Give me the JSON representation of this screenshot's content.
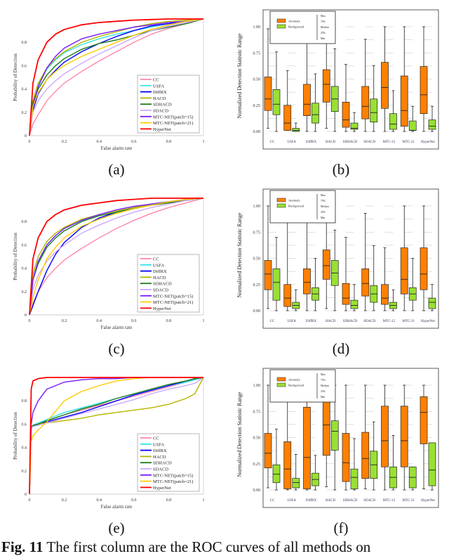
{
  "methods": [
    "CC",
    "USFA",
    "DiffRX",
    "HACD",
    "SDHACD",
    "SDACD",
    "MTC-NET(patch=15)",
    "MTC-NET(patch=21)",
    "HyperNet"
  ],
  "box_categories": [
    "CC",
    "USFA",
    "DiffRX",
    "HACD",
    "SDHACD",
    "SDACD",
    "MTC-15",
    "MTC-21",
    "HyperNet"
  ],
  "colors": {
    "CC": "#ff88aa",
    "USFA": "#33e6e6",
    "DiffRX": "#0000ff",
    "HACD": "#b5b500",
    "SDHACD": "#1a7a1a",
    "SDACD": "#ccaaff",
    "MTC-NET(patch=15)": "#7a1aff",
    "MTC-NET(patch=21)": "#ffcc00",
    "HyperNet": "#ff0000",
    "anomaly": "#ff8000",
    "background": "#99e033"
  },
  "panel_labels": [
    "(a)",
    "(b)",
    "(c)",
    "(d)",
    "(e)",
    "(f)"
  ],
  "caption": {
    "fig": "Fig. 11",
    "text": " The first column are the ROC curves of all methods on"
  },
  "chart_data": [
    {
      "panel": "(a)",
      "type": "line",
      "xlabel": "False alarm rate",
      "ylabel": "Probability of Detection",
      "xlim": [
        0,
        1
      ],
      "ylim": [
        0,
        1
      ],
      "xticks": [
        "0",
        "0.2",
        "0.4",
        "0.6",
        "0.8",
        "1"
      ],
      "yticks": [
        "0",
        "0.2",
        "0.4",
        "0.6",
        "0.8"
      ],
      "legend": "bottom-right",
      "x": [
        0,
        0.02,
        0.05,
        0.1,
        0.15,
        0.2,
        0.3,
        0.4,
        0.5,
        0.6,
        0.7,
        0.8,
        0.9,
        1
      ],
      "series": [
        {
          "name": "CC",
          "values": [
            0,
            0.1,
            0.18,
            0.3,
            0.38,
            0.45,
            0.55,
            0.64,
            0.72,
            0.8,
            0.87,
            0.92,
            0.96,
            1
          ]
        },
        {
          "name": "USFA",
          "values": [
            0,
            0.3,
            0.43,
            0.57,
            0.65,
            0.71,
            0.78,
            0.83,
            0.87,
            0.9,
            0.93,
            0.96,
            0.98,
            1
          ]
        },
        {
          "name": "DiffRX",
          "values": [
            0,
            0.22,
            0.36,
            0.48,
            0.56,
            0.63,
            0.72,
            0.79,
            0.85,
            0.9,
            0.94,
            0.96,
            0.98,
            1
          ]
        },
        {
          "name": "HACD",
          "values": [
            0,
            0.3,
            0.45,
            0.58,
            0.66,
            0.72,
            0.8,
            0.85,
            0.89,
            0.93,
            0.96,
            0.98,
            0.99,
            1
          ]
        },
        {
          "name": "SDHACD",
          "values": [
            0,
            0.28,
            0.4,
            0.52,
            0.6,
            0.66,
            0.74,
            0.79,
            0.82,
            0.86,
            0.9,
            0.93,
            0.96,
            1
          ]
        },
        {
          "name": "SDACD",
          "values": [
            0,
            0.2,
            0.3,
            0.4,
            0.47,
            0.53,
            0.62,
            0.7,
            0.77,
            0.84,
            0.9,
            0.94,
            0.97,
            1
          ]
        },
        {
          "name": "MTC-NET(patch=15)",
          "values": [
            0,
            0.25,
            0.42,
            0.58,
            0.68,
            0.75,
            0.83,
            0.87,
            0.9,
            0.93,
            0.95,
            0.97,
            0.98,
            1
          ]
        },
        {
          "name": "MTC-NET(patch=21)",
          "values": [
            0,
            0.25,
            0.37,
            0.48,
            0.55,
            0.6,
            0.68,
            0.74,
            0.8,
            0.86,
            0.91,
            0.95,
            0.98,
            1
          ]
        },
        {
          "name": "HyperNet",
          "values": [
            0,
            0.45,
            0.65,
            0.8,
            0.87,
            0.91,
            0.95,
            0.97,
            0.98,
            0.99,
            0.995,
            1,
            1,
            1
          ]
        }
      ]
    },
    {
      "panel": "(b)",
      "type": "box",
      "ylabel": "Normalized Detection Statistic Range",
      "ylim": [
        0,
        1
      ],
      "yticks": [
        "0.00",
        "0.25",
        "0.50",
        "0.75",
        "1.00"
      ],
      "legend": "top-left",
      "series_names": [
        "Anomaly",
        "Background"
      ],
      "whisker_labels": [
        "Max",
        "75%",
        "Median",
        "25%",
        "Min"
      ],
      "anomaly": [
        [
          0.03,
          0.2,
          0.31,
          0.52,
          0.98
        ],
        [
          0.01,
          0.01,
          0.08,
          0.25,
          0.58
        ],
        [
          0,
          0.15,
          0.26,
          0.45,
          1.0
        ],
        [
          0.03,
          0.28,
          0.45,
          0.59,
          1.0
        ],
        [
          0,
          0.04,
          0.11,
          0.28,
          0.64
        ],
        [
          0,
          0.12,
          0.24,
          0.43,
          0.88
        ],
        [
          0,
          0.22,
          0.42,
          0.66,
          1.0
        ],
        [
          0,
          0.05,
          0.2,
          0.53,
          1.0
        ],
        [
          0,
          0.17,
          0.35,
          0.62,
          1.0
        ]
      ],
      "background": [
        [
          0,
          0.16,
          0.26,
          0.4,
          0.76
        ],
        [
          0,
          0,
          0.01,
          0.03,
          0.08
        ],
        [
          0,
          0.08,
          0.16,
          0.27,
          0.55
        ],
        [
          0,
          0.19,
          0.31,
          0.43,
          0.79
        ],
        [
          0,
          0.02,
          0.03,
          0.08,
          0.18
        ],
        [
          0,
          0.09,
          0.18,
          0.31,
          0.63
        ],
        [
          0,
          0.02,
          0.07,
          0.17,
          0.39
        ],
        [
          0,
          0.01,
          0.01,
          0.1,
          0.24
        ],
        [
          0,
          0.02,
          0.05,
          0.11,
          0.24
        ]
      ]
    },
    {
      "panel": "(c)",
      "type": "line",
      "xlabel": "False alarm rate",
      "ylabel": "Probability of Detection",
      "xlim": [
        0,
        1
      ],
      "ylim": [
        0,
        1
      ],
      "xticks": [
        "0",
        "0.2",
        "0.4",
        "0.6",
        "0.8",
        "1"
      ],
      "yticks": [
        "0",
        "0.2",
        "0.4",
        "0.6",
        "0.8"
      ],
      "legend": "bottom-right",
      "x": [
        0,
        0.02,
        0.05,
        0.1,
        0.15,
        0.2,
        0.3,
        0.4,
        0.5,
        0.6,
        0.7,
        0.8,
        0.9,
        1
      ],
      "series": [
        {
          "name": "CC",
          "values": [
            0,
            0.1,
            0.2,
            0.32,
            0.4,
            0.47,
            0.57,
            0.66,
            0.74,
            0.81,
            0.87,
            0.92,
            0.96,
            1
          ]
        },
        {
          "name": "USFA",
          "values": [
            0,
            0.32,
            0.46,
            0.6,
            0.68,
            0.74,
            0.81,
            0.86,
            0.89,
            0.92,
            0.95,
            0.97,
            0.99,
            1
          ]
        },
        {
          "name": "DiffRX",
          "values": [
            0,
            0.08,
            0.2,
            0.38,
            0.52,
            0.62,
            0.75,
            0.83,
            0.88,
            0.92,
            0.95,
            0.97,
            0.99,
            1
          ]
        },
        {
          "name": "HACD",
          "values": [
            0,
            0.35,
            0.5,
            0.63,
            0.7,
            0.75,
            0.82,
            0.86,
            0.89,
            0.92,
            0.95,
            0.97,
            0.99,
            1
          ]
        },
        {
          "name": "SDHACD",
          "values": [
            0,
            0.3,
            0.44,
            0.58,
            0.66,
            0.72,
            0.8,
            0.85,
            0.88,
            0.91,
            0.94,
            0.96,
            0.98,
            1
          ]
        },
        {
          "name": "SDACD",
          "values": [
            0,
            0.22,
            0.34,
            0.46,
            0.54,
            0.6,
            0.7,
            0.77,
            0.83,
            0.88,
            0.92,
            0.95,
            0.98,
            1
          ]
        },
        {
          "name": "MTC-NET(patch=15)",
          "values": [
            0,
            0.3,
            0.46,
            0.6,
            0.68,
            0.74,
            0.81,
            0.86,
            0.9,
            0.93,
            0.95,
            0.97,
            0.99,
            1
          ]
        },
        {
          "name": "MTC-NET(patch=21)",
          "values": [
            0,
            0.15,
            0.3,
            0.48,
            0.58,
            0.66,
            0.76,
            0.82,
            0.87,
            0.91,
            0.94,
            0.97,
            0.99,
            1
          ]
        },
        {
          "name": "HyperNet",
          "values": [
            0,
            0.48,
            0.66,
            0.8,
            0.86,
            0.9,
            0.94,
            0.96,
            0.98,
            0.99,
            1,
            1,
            1,
            1
          ]
        }
      ]
    },
    {
      "panel": "(d)",
      "type": "box",
      "ylabel": "Normalized Detection Statistic Range",
      "ylim": [
        0,
        1
      ],
      "yticks": [
        "0.00",
        "0.25",
        "0.50",
        "0.75",
        "1.00"
      ],
      "legend": "top-left",
      "series_names": [
        "Anomaly",
        "Background"
      ],
      "whisker_labels": [
        "Max",
        "75%",
        "Median",
        "25%",
        "Min"
      ],
      "anomaly": [
        [
          0.02,
          0.2,
          0.35,
          0.48,
          1.0
        ],
        [
          0,
          0.04,
          0.12,
          0.25,
          1.0
        ],
        [
          0,
          0.16,
          0.27,
          0.4,
          1.0
        ],
        [
          0.02,
          0.3,
          0.43,
          0.58,
          1.0
        ],
        [
          0,
          0.06,
          0.12,
          0.26,
          0.7
        ],
        [
          0,
          0.14,
          0.26,
          0.4,
          0.93
        ],
        [
          0,
          0.06,
          0.12,
          0.25,
          0.6
        ],
        [
          0,
          0.16,
          0.3,
          0.6,
          1.0
        ],
        [
          0,
          0.2,
          0.35,
          0.6,
          1.0
        ]
      ],
      "background": [
        [
          0,
          0.1,
          0.27,
          0.4,
          0.7
        ],
        [
          0,
          0.02,
          0.05,
          0.08,
          0.2
        ],
        [
          0,
          0.1,
          0.16,
          0.22,
          0.5
        ],
        [
          0,
          0.24,
          0.36,
          0.48,
          0.77
        ],
        [
          0,
          0.02,
          0.05,
          0.1,
          0.25
        ],
        [
          0,
          0.08,
          0.16,
          0.24,
          0.62
        ],
        [
          0,
          0.02,
          0.05,
          0.08,
          0.2
        ],
        [
          0,
          0.1,
          0.16,
          0.22,
          0.5
        ],
        [
          0,
          0.02,
          0.08,
          0.12,
          0.25
        ]
      ]
    },
    {
      "panel": "(e)",
      "type": "line",
      "xlabel": "False alarm rate",
      "ylabel": "Probability of Detection",
      "xlim": [
        0,
        1
      ],
      "ylim": [
        0,
        1
      ],
      "xticks": [
        "0",
        "0.2",
        "0.4",
        "0.6",
        "0.8",
        "1"
      ],
      "yticks": [
        "0",
        "0.2",
        "0.4",
        "0.6",
        "0.8"
      ],
      "legend": "bottom-right",
      "x": [
        0,
        0.01,
        0.02,
        0.05,
        0.1,
        0.2,
        0.3,
        0.4,
        0.5,
        0.6,
        0.7,
        0.8,
        0.9,
        0.95,
        1
      ],
      "series": [
        {
          "name": "CC",
          "values": [
            0,
            0.57,
            0.59,
            0.6,
            0.63,
            0.68,
            0.72,
            0.76,
            0.8,
            0.84,
            0.88,
            0.92,
            0.96,
            0.98,
            1
          ]
        },
        {
          "name": "USFA",
          "values": [
            0,
            0.57,
            0.59,
            0.61,
            0.64,
            0.7,
            0.74,
            0.78,
            0.82,
            0.86,
            0.89,
            0.93,
            0.96,
            0.98,
            1
          ]
        },
        {
          "name": "DiffRX",
          "values": [
            0,
            0.57,
            0.58,
            0.6,
            0.62,
            0.66,
            0.7,
            0.75,
            0.8,
            0.85,
            0.89,
            0.93,
            0.97,
            0.99,
            1
          ]
        },
        {
          "name": "HACD",
          "values": [
            0,
            0.57,
            0.59,
            0.6,
            0.61,
            0.63,
            0.65,
            0.68,
            0.7,
            0.72,
            0.74,
            0.77,
            0.82,
            0.86,
            1
          ]
        },
        {
          "name": "SDHACD",
          "values": [
            0,
            0.57,
            0.59,
            0.6,
            0.63,
            0.68,
            0.73,
            0.77,
            0.82,
            0.86,
            0.9,
            0.94,
            0.97,
            0.99,
            1
          ]
        },
        {
          "name": "SDACD",
          "values": [
            0,
            0.56,
            0.58,
            0.59,
            0.61,
            0.65,
            0.69,
            0.73,
            0.77,
            0.81,
            0.86,
            0.9,
            0.93,
            0.95,
            1
          ]
        },
        {
          "name": "MTC-NET(patch=15)",
          "values": [
            0,
            0.6,
            0.7,
            0.8,
            0.9,
            0.96,
            0.98,
            0.99,
            0.99,
            1,
            1,
            1,
            1,
            1,
            1
          ]
        },
        {
          "name": "MTC-NET(patch=21)",
          "values": [
            0,
            0.45,
            0.5,
            0.55,
            0.62,
            0.8,
            0.88,
            0.93,
            0.97,
            0.99,
            1,
            1,
            1,
            1,
            1
          ]
        },
        {
          "name": "HyperNet",
          "values": [
            0,
            0.9,
            0.97,
            0.99,
            1,
            1,
            1,
            1,
            1,
            1,
            1,
            1,
            1,
            1,
            1
          ]
        }
      ]
    },
    {
      "panel": "(f)",
      "type": "box",
      "ylabel": "Normalized Detection Statistic Range",
      "ylim": [
        0,
        1
      ],
      "yticks": [
        "0.00",
        "0.25",
        "0.50",
        "0.75",
        "1.00"
      ],
      "legend": "top-left",
      "series_names": [
        "Anomaly",
        "Background"
      ],
      "whisker_labels": [
        "Max",
        "75%",
        "Median",
        "25%",
        "Min"
      ],
      "anomaly": [
        [
          0.02,
          0.21,
          0.35,
          0.54,
          1.0
        ],
        [
          0,
          0.01,
          0.2,
          0.46,
          1.0
        ],
        [
          0,
          0.01,
          0.31,
          0.79,
          1.0
        ],
        [
          0.03,
          0.33,
          0.62,
          1.0,
          1.0
        ],
        [
          0,
          0.08,
          0.26,
          0.54,
          1.0
        ],
        [
          0.01,
          0.11,
          0.3,
          0.55,
          1.0
        ],
        [
          0,
          0.22,
          0.47,
          0.8,
          1.0
        ],
        [
          0,
          0.22,
          0.47,
          0.8,
          1.0
        ],
        [
          0.01,
          0.44,
          0.74,
          0.89,
          1.0
        ]
      ],
      "background": [
        [
          0,
          0.07,
          0.15,
          0.24,
          0.58
        ],
        [
          0,
          0.02,
          0.07,
          0.11,
          0.34
        ],
        [
          0,
          0.04,
          0.1,
          0.16,
          0.33
        ],
        [
          0,
          0.38,
          0.56,
          0.66,
          1.0
        ],
        [
          0,
          0.01,
          0.12,
          0.2,
          0.49
        ],
        [
          0,
          0.11,
          0.24,
          0.37,
          0.65
        ],
        [
          0,
          0.02,
          0.12,
          0.22,
          0.52
        ],
        [
          0,
          0.02,
          0.12,
          0.22,
          0.22
        ],
        [
          0,
          0.04,
          0.19,
          0.45,
          0.45
        ]
      ]
    }
  ]
}
